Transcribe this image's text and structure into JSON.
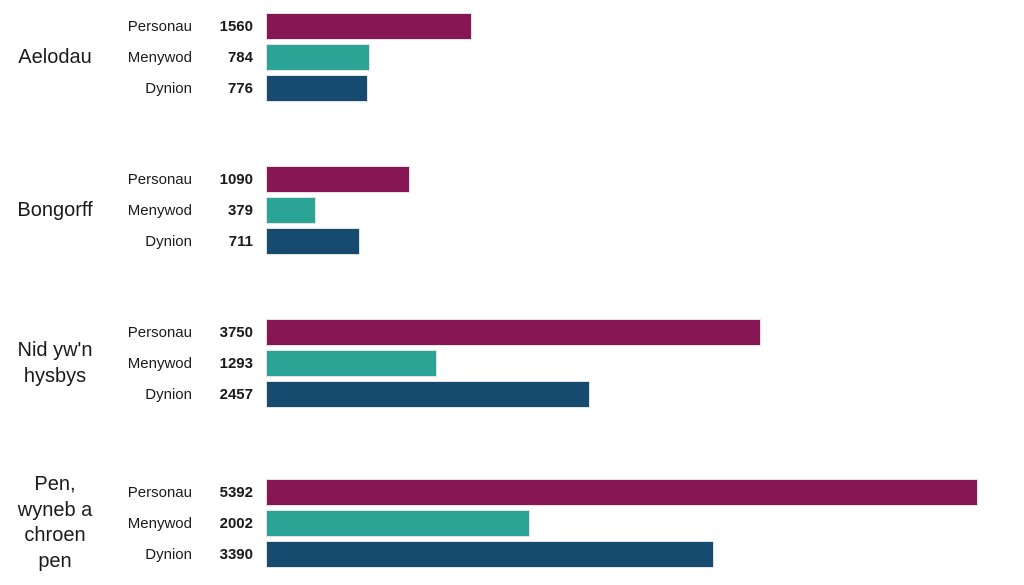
{
  "chart_data": {
    "type": "bar",
    "orientation": "horizontal",
    "title": "",
    "xlabel": "",
    "ylabel": "",
    "grid": false,
    "legend": "none",
    "value_labels_shown": true,
    "xlim": [
      0,
      5392
    ],
    "series_labels": [
      "Personau",
      "Menywod",
      "Dynion"
    ],
    "colors": [
      "#871754",
      "#2BA395",
      "#164A6E"
    ],
    "groups": [
      {
        "category": "Aelodau",
        "bars": [
          {
            "label": "Personau",
            "value": 1560
          },
          {
            "label": "Menywod",
            "value": 784
          },
          {
            "label": "Dynion",
            "value": 776
          }
        ]
      },
      {
        "category": "Bongorff",
        "bars": [
          {
            "label": "Personau",
            "value": 1090
          },
          {
            "label": "Menywod",
            "value": 379
          },
          {
            "label": "Dynion",
            "value": 711
          }
        ]
      },
      {
        "category": "Nid yw'n hysbys",
        "bars": [
          {
            "label": "Personau",
            "value": 3750
          },
          {
            "label": "Menywod",
            "value": 1293
          },
          {
            "label": "Dynion",
            "value": 2457
          }
        ]
      },
      {
        "category": "Pen, wyneb a chroen pen",
        "bars": [
          {
            "label": "Personau",
            "value": 5392
          },
          {
            "label": "Menywod",
            "value": 2002
          },
          {
            "label": "Dynion",
            "value": 3390
          }
        ]
      }
    ]
  }
}
